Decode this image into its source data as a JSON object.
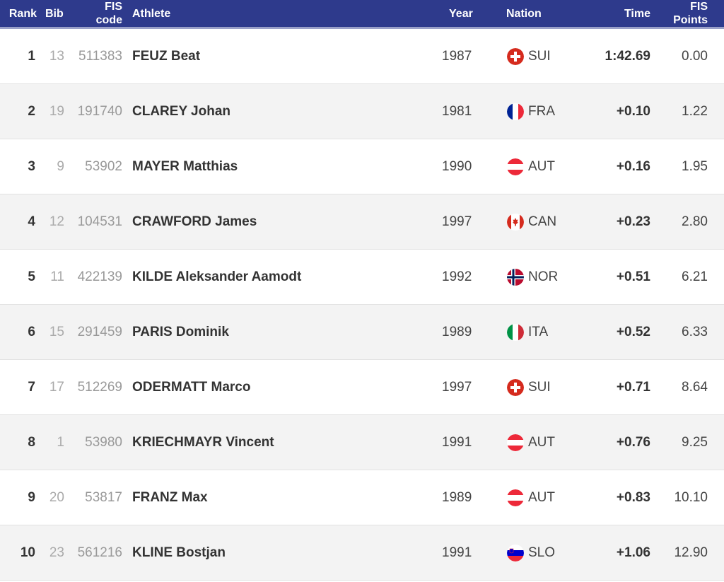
{
  "header": {
    "rank": "Rank",
    "bib": "Bib",
    "fis_code_line1": "FIS",
    "fis_code_line2": "code",
    "athlete": "Athlete",
    "year": "Year",
    "nation": "Nation",
    "time": "Time",
    "fis_points_line1": "FIS",
    "fis_points_line2": "Points"
  },
  "rows": [
    {
      "rank": "1",
      "bib": "13",
      "fis_code": "511383",
      "athlete": "FEUZ Beat",
      "year": "1987",
      "nation": "SUI",
      "flag": "switzerland-flag-icon",
      "time": "1:42.69",
      "points": "0.00"
    },
    {
      "rank": "2",
      "bib": "19",
      "fis_code": "191740",
      "athlete": "CLAREY Johan",
      "year": "1981",
      "nation": "FRA",
      "flag": "france-flag-icon",
      "time": "+0.10",
      "points": "1.22"
    },
    {
      "rank": "3",
      "bib": "9",
      "fis_code": "53902",
      "athlete": "MAYER Matthias",
      "year": "1990",
      "nation": "AUT",
      "flag": "austria-flag-icon",
      "time": "+0.16",
      "points": "1.95"
    },
    {
      "rank": "4",
      "bib": "12",
      "fis_code": "104531",
      "athlete": "CRAWFORD James",
      "year": "1997",
      "nation": "CAN",
      "flag": "canada-flag-icon",
      "time": "+0.23",
      "points": "2.80"
    },
    {
      "rank": "5",
      "bib": "11",
      "fis_code": "422139",
      "athlete": "KILDE Aleksander Aamodt",
      "year": "1992",
      "nation": "NOR",
      "flag": "norway-flag-icon",
      "time": "+0.51",
      "points": "6.21"
    },
    {
      "rank": "6",
      "bib": "15",
      "fis_code": "291459",
      "athlete": "PARIS Dominik",
      "year": "1989",
      "nation": "ITA",
      "flag": "italy-flag-icon",
      "time": "+0.52",
      "points": "6.33"
    },
    {
      "rank": "7",
      "bib": "17",
      "fis_code": "512269",
      "athlete": "ODERMATT Marco",
      "year": "1997",
      "nation": "SUI",
      "flag": "switzerland-flag-icon",
      "time": "+0.71",
      "points": "8.64"
    },
    {
      "rank": "8",
      "bib": "1",
      "fis_code": "53980",
      "athlete": "KRIECHMAYR Vincent",
      "year": "1991",
      "nation": "AUT",
      "flag": "austria-flag-icon",
      "time": "+0.76",
      "points": "9.25"
    },
    {
      "rank": "9",
      "bib": "20",
      "fis_code": "53817",
      "athlete": "FRANZ Max",
      "year": "1989",
      "nation": "AUT",
      "flag": "austria-flag-icon",
      "time": "+0.83",
      "points": "10.10"
    },
    {
      "rank": "10",
      "bib": "23",
      "fis_code": "561216",
      "athlete": "KLINE Bostjan",
      "year": "1991",
      "nation": "SLO",
      "flag": "slovenia-flag-icon",
      "time": "+1.06",
      "points": "12.90"
    }
  ],
  "colors": {
    "header_bg": "#2e3a8c",
    "row_alt_bg": "#f3f3f3"
  }
}
